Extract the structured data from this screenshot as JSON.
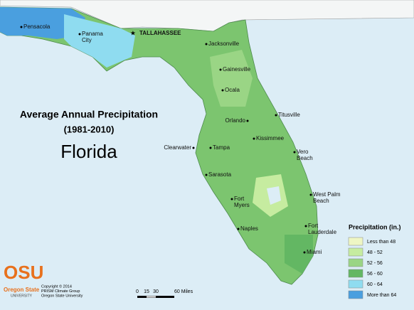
{
  "title": "Average Annual Precipitation",
  "subtitle": "(1981-2010)",
  "state": "Florida",
  "cities": [
    {
      "label": [
        "Pensacola"
      ]
    },
    {
      "label": [
        "Panama",
        "City"
      ]
    },
    {
      "label": [
        "TALLAHASSEE"
      ],
      "capital": true
    },
    {
      "label": [
        "Jacksonville"
      ]
    },
    {
      "label": [
        "Gainesville"
      ]
    },
    {
      "label": [
        "Ocala"
      ]
    },
    {
      "label": [
        "Orlando"
      ]
    },
    {
      "label": [
        "Titusville"
      ]
    },
    {
      "label": [
        "Kissimmee"
      ]
    },
    {
      "label": [
        "Clearwater"
      ]
    },
    {
      "label": [
        "Tampa"
      ]
    },
    {
      "label": [
        "Vero",
        "Beach"
      ]
    },
    {
      "label": [
        "Sarasota"
      ]
    },
    {
      "label": [
        "West Palm",
        "Beach"
      ]
    },
    {
      "label": [
        "Fort",
        "Myers"
      ]
    },
    {
      "label": [
        "Fort",
        "Lauderdale"
      ]
    },
    {
      "label": [
        "Naples"
      ]
    },
    {
      "label": [
        "Miami"
      ]
    }
  ],
  "legend": {
    "title": "Precipitation (in.)",
    "items": [
      {
        "label": "Less than 48",
        "color": "#eef6c4"
      },
      {
        "label": "48 - 52",
        "color": "#c6eca0"
      },
      {
        "label": "52 - 56",
        "color": "#9ad585"
      },
      {
        "label": "56 - 60",
        "color": "#63b763"
      },
      {
        "label": "60 - 64",
        "color": "#8fdcf0"
      },
      {
        "label": "More than 64",
        "color": "#4a9fdf"
      }
    ]
  },
  "scale_bar": [
    "0",
    "15",
    "30",
    "60 Miles"
  ],
  "logo": {
    "name": "OSU",
    "line1": "Oregon State",
    "line2": "UNIVERSITY"
  },
  "credits": [
    "Copyright © 2014",
    "PRISM Climate Group",
    "Oregon State University"
  ]
}
